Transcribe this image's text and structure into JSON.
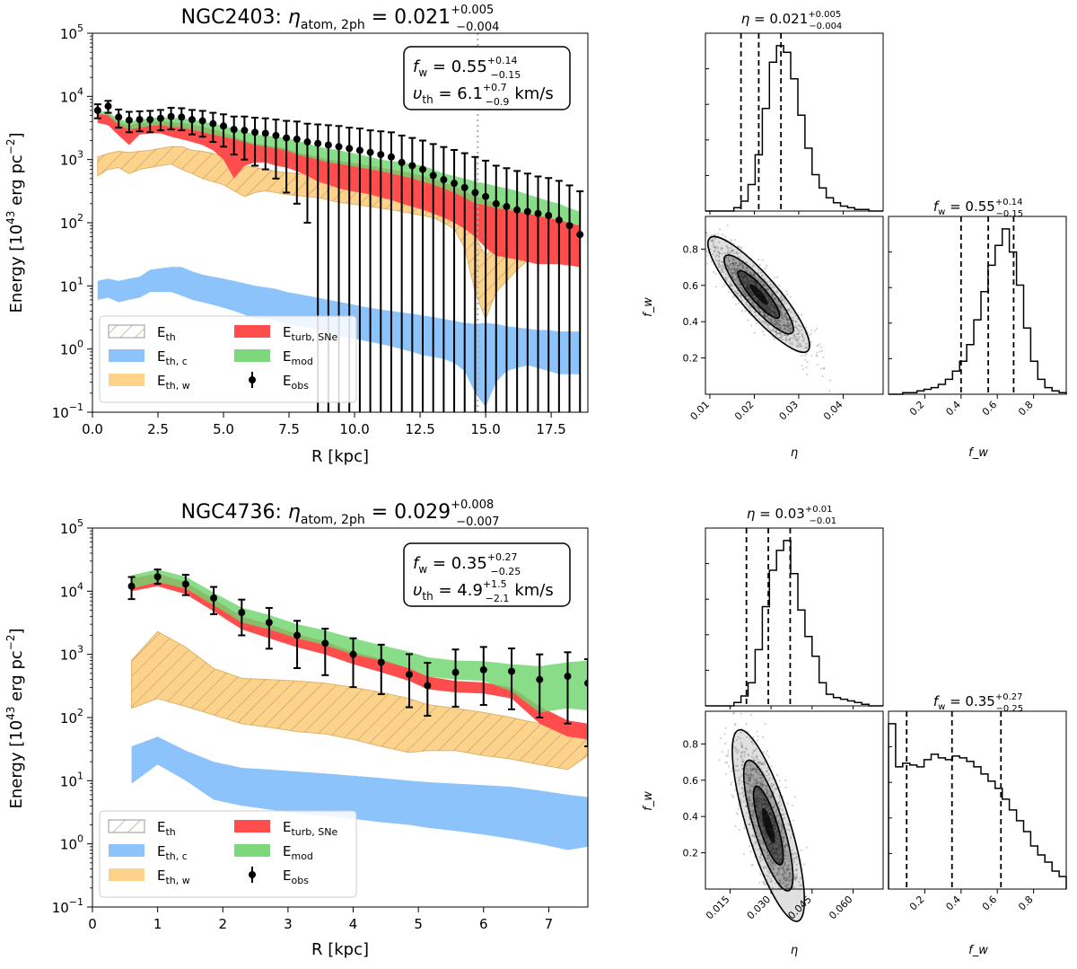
{
  "chart_data": [
    {
      "id": "ngc2403_profile",
      "type": "area",
      "title": "NGC2403: η_atom,2ph = 0.021 +0.005 −0.004",
      "title_parts": {
        "galaxy": "NGC2403:",
        "symbol": "η",
        "sub": "atom, 2ph",
        "value": "= 0.021",
        "plus": "+0.005",
        "minus": "−0.004"
      },
      "xlabel": "R [kpc]",
      "ylabel": "Energy [10^43 erg pc^-2]",
      "xlim": [
        0,
        18.9
      ],
      "ylim_log10": [
        -1,
        5
      ],
      "yscale": "log",
      "xticks": [
        0,
        2.5,
        5,
        7.5,
        10,
        12.5,
        15,
        17.5
      ],
      "xtick_labels": [
        "0.0",
        "2.5",
        "5.0",
        "7.5",
        "10.0",
        "12.5",
        "15.0",
        "17.5"
      ],
      "ytick_exponents": [
        -1,
        0,
        1,
        2,
        3,
        4,
        5
      ],
      "vline_x": 14.7,
      "annotation": {
        "fw_label": "f",
        "fw_sub": "w",
        "fw_value": "= 0.55",
        "fw_plus": "+0.14",
        "fw_minus": "−0.15",
        "vth_label": "υ",
        "vth_sub": "th",
        "vth_value": "= 6.1",
        "vth_plus": "+0.7",
        "vth_minus": "−0.9",
        "vth_unit": "km/s"
      },
      "legend": [
        {
          "key": "E_th",
          "label": "E",
          "sub": "th",
          "kind": "hatch"
        },
        {
          "key": "E_th_c",
          "label": "E",
          "sub": "th, c",
          "kind": "blue"
        },
        {
          "key": "E_th_w",
          "label": "E",
          "sub": "th, w",
          "kind": "orange"
        },
        {
          "key": "E_turb",
          "label": "E",
          "sub": "turb, SNe",
          "kind": "red"
        },
        {
          "key": "E_mod",
          "label": "E",
          "sub": "mod",
          "kind": "green"
        },
        {
          "key": "E_obs",
          "label": "E",
          "sub": "obs",
          "kind": "errorbar"
        }
      ],
      "r": [
        0.2,
        0.6,
        1.0,
        1.4,
        1.8,
        2.2,
        2.6,
        3.0,
        3.4,
        3.8,
        4.2,
        4.6,
        5.0,
        5.4,
        5.8,
        6.2,
        6.6,
        7.0,
        7.4,
        7.8,
        8.2,
        8.6,
        9.0,
        9.4,
        9.8,
        10.2,
        10.6,
        11.0,
        11.4,
        11.8,
        12.2,
        12.6,
        13.0,
        13.4,
        13.8,
        14.2,
        14.6,
        15.0,
        15.4,
        15.8,
        16.2,
        16.6,
        17.0,
        17.4,
        17.8,
        18.2,
        18.6
      ],
      "obs": [
        6000,
        7000,
        4700,
        4200,
        4300,
        4300,
        4500,
        4800,
        4700,
        4300,
        4100,
        3700,
        3400,
        3000,
        2900,
        2700,
        2600,
        2400,
        2200,
        2100,
        1900,
        1800,
        1700,
        1600,
        1500,
        1400,
        1300,
        1200,
        1100,
        900,
        800,
        700,
        560,
        480,
        420,
        360,
        300,
        260,
        200,
        180,
        160,
        150,
        140,
        130,
        110,
        90,
        65
      ],
      "obs_err": [
        1500,
        1500,
        1500,
        1500,
        1500,
        1600,
        1600,
        1800,
        1800,
        1800,
        1800,
        1800,
        1800,
        1800,
        1900,
        1900,
        1900,
        1900,
        1900,
        1900,
        1800,
        1800,
        1800,
        1800,
        1700,
        1700,
        1600,
        1600,
        1600,
        1500,
        1400,
        1300,
        1200,
        1100,
        1000,
        900,
        800,
        700,
        600,
        550,
        500,
        450,
        400,
        380,
        350,
        300,
        250
      ],
      "mod_lo": [
        5200,
        5000,
        3500,
        3000,
        3200,
        3400,
        3500,
        3300,
        3200,
        3000,
        2700,
        2500,
        2300,
        2100,
        1900,
        1700,
        1600,
        1500,
        1400,
        1200,
        1100,
        1000,
        900,
        850,
        800,
        750,
        700,
        650,
        600,
        550,
        500,
        450,
        400,
        350,
        300,
        250,
        200,
        190,
        170,
        160,
        150,
        140,
        130,
        120,
        110,
        100,
        90
      ],
      "mod_hi": [
        5800,
        5700,
        4300,
        4000,
        4300,
        4500,
        4700,
        4600,
        4500,
        4300,
        4000,
        3700,
        3400,
        3100,
        2800,
        2500,
        2400,
        2300,
        2200,
        2000,
        1800,
        1600,
        1500,
        1400,
        1300,
        1200,
        1100,
        1000,
        950,
        900,
        850,
        800,
        700,
        600,
        550,
        500,
        450,
        420,
        380,
        350,
        320,
        280,
        250,
        220,
        200,
        170,
        150
      ],
      "turb_lo": [
        3800,
        3500,
        2400,
        1700,
        2500,
        2600,
        2600,
        2300,
        2100,
        1900,
        1700,
        1400,
        1000,
        500,
        800,
        900,
        900,
        800,
        750,
        650,
        550,
        450,
        400,
        350,
        320,
        300,
        280,
        250,
        230,
        200,
        180,
        160,
        140,
        120,
        100,
        80,
        60,
        40,
        30,
        28,
        26,
        24,
        22,
        22,
        22,
        21,
        20
      ],
      "turb_hi": [
        5300,
        5200,
        3900,
        3500,
        3800,
        3900,
        4100,
        3900,
        3800,
        3600,
        3300,
        3000,
        2700,
        2300,
        2000,
        1800,
        1700,
        1600,
        1500,
        1300,
        1200,
        1100,
        1000,
        950,
        900,
        850,
        800,
        750,
        700,
        650,
        600,
        550,
        500,
        430,
        380,
        320,
        260,
        230,
        200,
        180,
        160,
        140,
        130,
        120,
        110,
        100,
        90
      ],
      "thw_lo": [
        550,
        700,
        750,
        600,
        700,
        750,
        800,
        850,
        700,
        600,
        500,
        450,
        400,
        320,
        260,
        300,
        320,
        300,
        280,
        270,
        260,
        250,
        230,
        210,
        200,
        190,
        180,
        170,
        160,
        150,
        140,
        130,
        120,
        100,
        80,
        40,
        8,
        3,
        8,
        12,
        18,
        25,
        30,
        28,
        25,
        22,
        20
      ],
      "thw_hi": [
        1100,
        1250,
        1350,
        1300,
        1350,
        1400,
        1500,
        1600,
        1600,
        1400,
        1350,
        1250,
        1100,
        950,
        800,
        750,
        700,
        650,
        620,
        600,
        580,
        560,
        540,
        520,
        500,
        480,
        460,
        440,
        420,
        400,
        380,
        360,
        340,
        300,
        260,
        180,
        60,
        30,
        45,
        50,
        55,
        60,
        60,
        55,
        50,
        45,
        40
      ],
      "thc_lo": [
        6,
        6.5,
        5.5,
        6,
        6.5,
        8,
        8,
        8,
        7,
        6,
        5.5,
        5,
        4.5,
        4,
        3.5,
        3,
        3,
        2.8,
        2.5,
        2.3,
        2.2,
        2,
        1.8,
        1.6,
        1.5,
        1.4,
        1.3,
        1.2,
        1.1,
        1.0,
        0.9,
        0.8,
        0.75,
        0.7,
        0.6,
        0.45,
        0.2,
        0.12,
        0.3,
        0.45,
        0.5,
        0.55,
        0.5,
        0.45,
        0.4,
        0.4,
        0.4
      ],
      "thc_hi": [
        12,
        13,
        12,
        13,
        14,
        18,
        19,
        20,
        20,
        17,
        15,
        14,
        13,
        12,
        11,
        10,
        9.5,
        9,
        8,
        7.5,
        7,
        6.5,
        6,
        5.6,
        5.2,
        4.8,
        4.5,
        4.2,
        4,
        3.8,
        3.6,
        3.4,
        3.2,
        3.0,
        2.8,
        2.6,
        2.5,
        2.6,
        2.5,
        2.3,
        2.2,
        2.1,
        2.0,
        2.0,
        1.9,
        1.9,
        1.9
      ]
    },
    {
      "id": "ngc4736_profile",
      "type": "area",
      "title": "NGC4736: η_atom,2ph = 0.029 +0.008 −0.007",
      "title_parts": {
        "galaxy": "NGC4736:",
        "symbol": "η",
        "sub": "atom, 2ph",
        "value": "= 0.029",
        "plus": "+0.008",
        "minus": "−0.007"
      },
      "xlabel": "R [kpc]",
      "ylabel": "Energy [10^43 erg pc^-2]",
      "xlim": [
        0,
        7.6
      ],
      "ylim_log10": [
        -1,
        5
      ],
      "yscale": "log",
      "xticks": [
        0,
        1,
        2,
        3,
        4,
        5,
        6,
        7
      ],
      "xtick_labels": [
        "0",
        "1",
        "2",
        "3",
        "4",
        "5",
        "6",
        "7"
      ],
      "ytick_exponents": [
        -1,
        0,
        1,
        2,
        3,
        4,
        5
      ],
      "annotation": {
        "fw_label": "f",
        "fw_sub": "w",
        "fw_value": "= 0.35",
        "fw_plus": "+0.27",
        "fw_minus": "−0.25",
        "vth_label": "υ",
        "vth_sub": "th",
        "vth_value": "= 4.9",
        "vth_plus": "+1.5",
        "vth_minus": "−2.1",
        "vth_unit": "km/s"
      },
      "legend": [
        {
          "key": "E_th",
          "label": "E",
          "sub": "th",
          "kind": "hatch"
        },
        {
          "key": "E_th_c",
          "label": "E",
          "sub": "th, c",
          "kind": "blue"
        },
        {
          "key": "E_th_w",
          "label": "E",
          "sub": "th, w",
          "kind": "orange"
        },
        {
          "key": "E_turb",
          "label": "E",
          "sub": "turb, SNe",
          "kind": "red"
        },
        {
          "key": "E_mod",
          "label": "E",
          "sub": "mod",
          "kind": "green"
        },
        {
          "key": "E_obs",
          "label": "E",
          "sub": "obs",
          "kind": "errorbar"
        }
      ],
      "r": [
        0.6,
        1.0,
        1.43,
        1.86,
        2.29,
        2.71,
        3.14,
        3.57,
        4.0,
        4.43,
        4.86,
        5.14,
        5.57,
        6.0,
        6.43,
        6.86,
        7.29,
        7.6
      ],
      "obs": [
        12000,
        17000,
        13000,
        7800,
        4600,
        3200,
        2000,
        1500,
        1000,
        750,
        480,
        320,
        520,
        570,
        540,
        400,
        450,
        350
      ],
      "obs_err_lo_factor": [
        1.6,
        1.3,
        1.5,
        1.8,
        2.3,
        2.6,
        3.3,
        3.2,
        3.3,
        3.2,
        3.3,
        3.0,
        3.5,
        3.6,
        4.0,
        4.0,
        5.6,
        10
      ],
      "obs_err_hi_factor": [
        1.4,
        1.3,
        1.4,
        1.5,
        1.6,
        1.7,
        1.7,
        1.7,
        1.8,
        1.9,
        2.1,
        2.3,
        2.3,
        2.3,
        2.3,
        2.5,
        2.4,
        2.4
      ],
      "mod_lo": [
        11000,
        14000,
        11000,
        6000,
        3200,
        2500,
        1800,
        1400,
        1000,
        800,
        600,
        450,
        400,
        380,
        260,
        120,
        140,
        130
      ],
      "mod_hi": [
        18000,
        22000,
        17000,
        9500,
        5500,
        4200,
        3000,
        2400,
        1800,
        1400,
        1100,
        900,
        800,
        780,
        700,
        650,
        750,
        800
      ],
      "turb_lo": [
        10000,
        12000,
        9000,
        4800,
        2500,
        1800,
        1300,
        1000,
        700,
        520,
        380,
        280,
        250,
        240,
        200,
        80,
        50,
        45
      ],
      "turb_hi": [
        16000,
        19000,
        14000,
        7500,
        4000,
        3000,
        2100,
        1600,
        1100,
        850,
        600,
        450,
        380,
        360,
        300,
        150,
        90,
        80
      ],
      "thw_lo": [
        140,
        200,
        150,
        110,
        80,
        70,
        60,
        55,
        45,
        35,
        28,
        30,
        30,
        25,
        22,
        18,
        15,
        25
      ],
      "thw_hi": [
        800,
        2300,
        1300,
        600,
        420,
        400,
        380,
        350,
        300,
        250,
        200,
        160,
        140,
        120,
        100,
        80,
        55,
        45
      ],
      "thc_lo": [
        9,
        18,
        10,
        5,
        4,
        3.5,
        3,
        2.8,
        2.5,
        2.2,
        2.0,
        1.8,
        1.6,
        1.4,
        1.2,
        1.0,
        0.8,
        0.9
      ],
      "thc_hi": [
        35,
        50,
        30,
        20,
        16,
        15,
        14,
        13,
        12,
        11,
        10,
        9.5,
        9,
        8.5,
        8,
        7,
        6,
        5.5
      ]
    },
    {
      "id": "corner_ngc2403",
      "type": "scatter",
      "eta_title": {
        "symbol": "η",
        "value": "= 0.021",
        "plus": "+0.005",
        "minus": "−0.004"
      },
      "fw_title": {
        "symbol": "f",
        "sub": "w",
        "value": "= 0.55",
        "plus": "+0.14",
        "minus": "−0.15"
      },
      "xlabel": "η",
      "ylabel": "f_w",
      "eta_range": [
        0.009,
        0.049
      ],
      "fw_range": [
        0.0,
        0.98
      ],
      "eta_ticks": [
        0.01,
        0.02,
        0.03,
        0.04
      ],
      "eta_tick_labels": [
        "0.01",
        "0.02",
        "0.03",
        "0.04"
      ],
      "fw_ticks": [
        0.2,
        0.4,
        0.6,
        0.8
      ],
      "fw_tick_labels": [
        "0.2",
        "0.4",
        "0.6",
        "0.8"
      ],
      "eta_quantiles": [
        0.017,
        0.021,
        0.026
      ],
      "fw_quantiles": [
        0.4,
        0.55,
        0.69
      ],
      "eta_hist": [
        0,
        0,
        0,
        0,
        2,
        6,
        16,
        34,
        62,
        90,
        100,
        96,
        80,
        58,
        38,
        22,
        14,
        8,
        5,
        3,
        2,
        1,
        1,
        0,
        0
      ],
      "fw_hist": [
        0,
        0,
        1,
        1,
        2,
        3,
        4,
        6,
        9,
        14,
        20,
        30,
        45,
        62,
        78,
        90,
        100,
        86,
        66,
        40,
        20,
        9,
        4,
        2,
        1
      ],
      "cloud": {
        "eta_mean": 0.021,
        "fw_mean": 0.55,
        "eta_sd": 0.0052,
        "fw_sd": 0.145,
        "corr": -0.88
      }
    },
    {
      "id": "corner_ngc4736",
      "type": "scatter",
      "eta_title": {
        "symbol": "η",
        "value": "= 0.03",
        "plus": "+0.01",
        "minus": "−0.01"
      },
      "fw_title": {
        "symbol": "f",
        "sub": "w",
        "value": "= 0.35",
        "plus": "+0.27",
        "minus": "−0.25"
      },
      "xlabel": "η",
      "ylabel": "f_w",
      "eta_range": [
        0.006,
        0.071
      ],
      "fw_range": [
        0.0,
        0.98
      ],
      "eta_ticks": [
        0.015,
        0.03,
        0.045,
        0.06
      ],
      "eta_tick_labels": [
        "0.015",
        "0.030",
        "0.045",
        "0.060"
      ],
      "fw_ticks": [
        0.2,
        0.4,
        0.6,
        0.8
      ],
      "fw_tick_labels": [
        "0.2",
        "0.4",
        "0.6",
        "0.8"
      ],
      "eta_quantiles": [
        0.021,
        0.029,
        0.037
      ],
      "fw_quantiles": [
        0.1,
        0.35,
        0.62
      ],
      "eta_hist": [
        0,
        0,
        0,
        0,
        2,
        6,
        14,
        34,
        60,
        82,
        94,
        100,
        80,
        58,
        42,
        30,
        14,
        7,
        5,
        4,
        3,
        2,
        1,
        0,
        0
      ],
      "fw_hist": [
        92,
        68,
        70,
        69,
        68,
        72,
        75,
        73,
        72,
        74,
        73,
        71,
        68,
        64,
        60,
        56,
        50,
        44,
        38,
        32,
        24,
        19,
        15,
        10,
        7
      ],
      "cloud": {
        "eta_mean": 0.029,
        "fw_mean": 0.35,
        "eta_sd": 0.006,
        "fw_sd": 0.24,
        "corr": -0.78
      }
    }
  ]
}
